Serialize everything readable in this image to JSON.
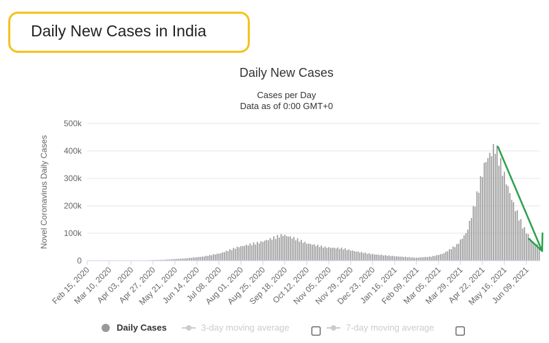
{
  "banner": {
    "title": "Daily New Cases in India"
  },
  "chart_data": {
    "type": "bar",
    "title": "Daily New Cases",
    "subtitle_lines": [
      "Cases per Day",
      "Data as of 0:00 GMT+0"
    ],
    "ylabel": "Novel Coronavirus Daily Cases",
    "xlabel": "",
    "ylim": [
      0,
      500000
    ],
    "yticks": [
      0,
      100000,
      200000,
      300000,
      400000,
      500000
    ],
    "ytick_labels": [
      "0",
      "100k",
      "200k",
      "300k",
      "400k",
      "500k"
    ],
    "xtick_labels": [
      "Feb 15, 2020",
      "Mar 10, 2020",
      "Apr 03, 2020",
      "Apr 27, 2020",
      "May 21, 2020",
      "Jun 14, 2020",
      "Jul 08, 2020",
      "Aug 01, 2020",
      "Aug 25, 2020",
      "Sep 18, 2020",
      "Oct 12, 2020",
      "Nov 05, 2020",
      "Nov 29, 2020",
      "Dec 23, 2020",
      "Jan 16, 2021",
      "Feb 09, 2021",
      "Mar 05, 2021",
      "Mar 29, 2021",
      "Apr 22, 2021",
      "May 16, 2021",
      "Jun 09, 2021"
    ],
    "date_range": [
      "Feb 15, 2020",
      "Jun 24, 2021"
    ],
    "bar_interval_days": 2,
    "grid": true,
    "color": "#999999",
    "trend_points": [
      {
        "date": "Feb 15, 2020",
        "value": 0
      },
      {
        "date": "Mar 20, 2020",
        "value": 200
      },
      {
        "date": "Apr 15, 2020",
        "value": 1000
      },
      {
        "date": "May 10, 2020",
        "value": 3500
      },
      {
        "date": "Jun 01, 2020",
        "value": 8000
      },
      {
        "date": "Jun 20, 2020",
        "value": 14000
      },
      {
        "date": "Jul 10, 2020",
        "value": 27000
      },
      {
        "date": "Jul 30, 2020",
        "value": 52000
      },
      {
        "date": "Aug 20, 2020",
        "value": 68000
      },
      {
        "date": "Sep 05, 2020",
        "value": 85000
      },
      {
        "date": "Sep 16, 2020",
        "value": 96000
      },
      {
        "date": "Sep 25, 2020",
        "value": 86000
      },
      {
        "date": "Oct 12, 2020",
        "value": 62000
      },
      {
        "date": "Nov 01, 2020",
        "value": 47000
      },
      {
        "date": "Nov 20, 2020",
        "value": 43000
      },
      {
        "date": "Dec 05, 2020",
        "value": 33000
      },
      {
        "date": "Dec 23, 2020",
        "value": 24000
      },
      {
        "date": "Jan 16, 2021",
        "value": 17000
      },
      {
        "date": "Feb 09, 2021",
        "value": 11000
      },
      {
        "date": "Feb 25, 2021",
        "value": 15000
      },
      {
        "date": "Mar 10, 2021",
        "value": 25000
      },
      {
        "date": "Mar 25, 2021",
        "value": 55000
      },
      {
        "date": "Apr 05, 2021",
        "value": 100000
      },
      {
        "date": "Apr 15, 2021",
        "value": 215000
      },
      {
        "date": "Apr 25, 2021",
        "value": 350000
      },
      {
        "date": "May 06, 2021",
        "value": 410000
      },
      {
        "date": "May 16, 2021",
        "value": 310000
      },
      {
        "date": "May 26, 2021",
        "value": 210000
      },
      {
        "date": "Jun 05, 2021",
        "value": 130000
      },
      {
        "date": "Jun 15, 2021",
        "value": 75000
      },
      {
        "date": "Jun 24, 2021",
        "value": 52000
      }
    ],
    "annotations": [
      {
        "type": "arrow",
        "color": "#2aa14a",
        "from": {
          "date": "May 09, 2021",
          "value": 415000
        },
        "to": {
          "date": "Jun 24, 2021",
          "value": 35000
        }
      }
    ]
  },
  "legend": {
    "items": [
      {
        "label": "Daily Cases",
        "active": true
      },
      {
        "label": "3-day moving average",
        "active": false
      },
      {
        "label": "7-day moving average",
        "active": false
      }
    ]
  },
  "colors": {
    "banner_border": "#f5c21b",
    "bars": "#999999",
    "arrow": "#2aa14a",
    "grid": "#e6e6e6"
  }
}
